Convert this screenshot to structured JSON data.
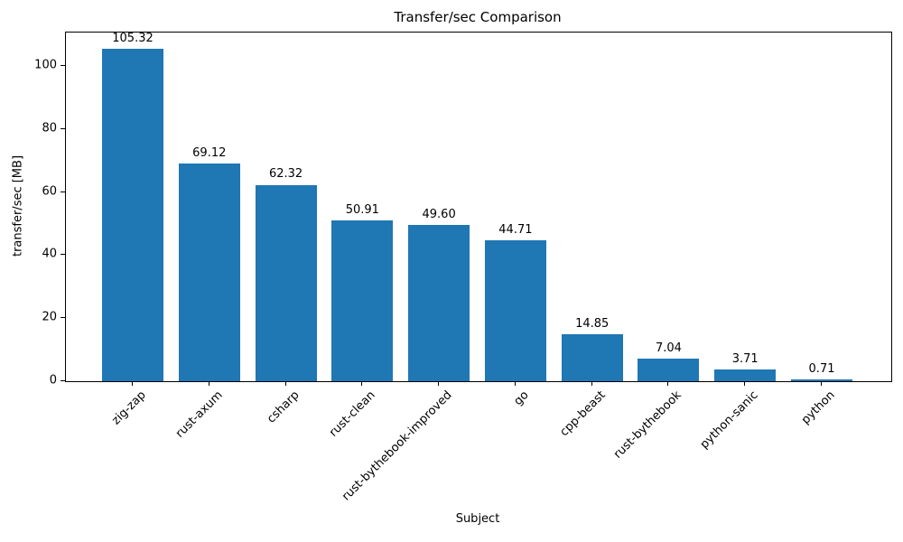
{
  "chart_data": {
    "type": "bar",
    "title": "Transfer/sec Comparison",
    "xlabel": "Subject",
    "ylabel": "transfer/sec [MB]",
    "categories": [
      "zig-zap",
      "rust-axum",
      "csharp",
      "rust-clean",
      "rust-bythebook-improved",
      "go",
      "cpp-beast",
      "rust-bythebook",
      "python-sanic",
      "python"
    ],
    "values": [
      105.32,
      69.12,
      62.32,
      50.91,
      49.6,
      44.71,
      14.85,
      7.04,
      3.71,
      0.71
    ],
    "value_labels": [
      "105.32",
      "69.12",
      "62.32",
      "50.91",
      "49.60",
      "44.71",
      "14.85",
      "7.04",
      "3.71",
      "0.71"
    ],
    "yticks": [
      0,
      20,
      40,
      60,
      80,
      100
    ],
    "ylim": [
      0,
      110.6
    ],
    "bar_color": "#1f77b4",
    "grid": false,
    "legend": "none"
  }
}
